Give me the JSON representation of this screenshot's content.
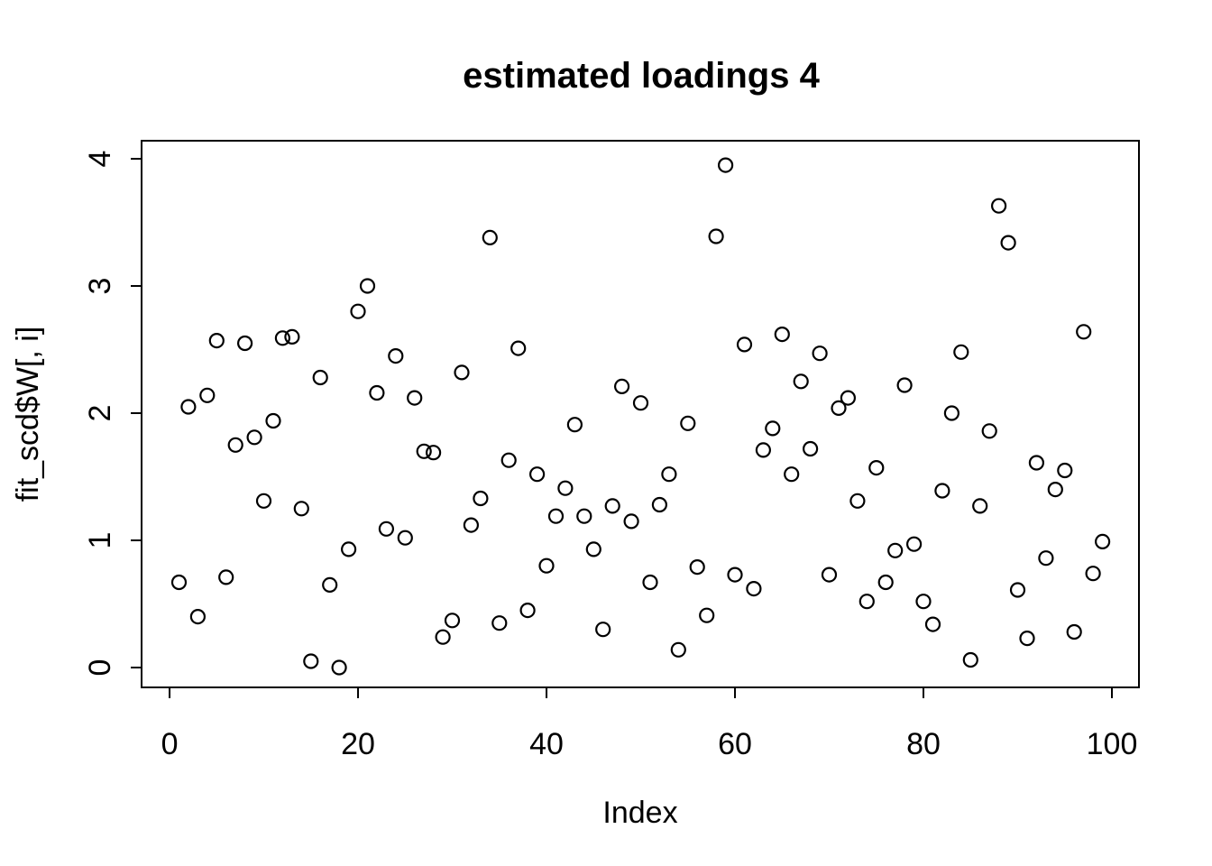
{
  "chart_data": {
    "type": "scatter",
    "title": "estimated loadings 4",
    "xlabel": "Index",
    "ylabel": "fit_scd$W[, i]",
    "x_ticks": [
      0,
      20,
      40,
      60,
      80,
      100
    ],
    "y_ticks": [
      0,
      1,
      2,
      3,
      4
    ],
    "xlim": [
      -2.97,
      102.87
    ],
    "ylim": [
      -0.156,
      4.142
    ],
    "grid": false,
    "legend": "none",
    "marker": "open-circle",
    "marker_color": "#000000",
    "background_color": "#ffffff",
    "x": [
      1,
      2,
      3,
      4,
      5,
      6,
      7,
      8,
      9,
      10,
      11,
      12,
      13,
      14,
      15,
      16,
      17,
      18,
      19,
      20,
      21,
      22,
      23,
      24,
      25,
      26,
      27,
      28,
      29,
      30,
      31,
      32,
      33,
      34,
      35,
      36,
      37,
      38,
      39,
      40,
      41,
      42,
      43,
      44,
      45,
      46,
      47,
      48,
      49,
      50,
      51,
      52,
      53,
      54,
      55,
      56,
      57,
      58,
      59,
      60,
      61,
      62,
      63,
      64,
      65,
      66,
      67,
      68,
      69,
      70,
      71,
      72,
      73,
      74,
      75,
      76,
      77,
      78,
      79,
      80,
      81,
      82,
      83,
      84,
      85,
      86,
      87,
      88,
      89,
      90,
      91,
      92,
      93,
      94,
      95,
      96,
      97,
      98,
      99
    ],
    "y": [
      0.67,
      2.05,
      0.4,
      2.14,
      2.57,
      0.71,
      1.75,
      2.55,
      1.81,
      1.31,
      1.94,
      2.59,
      2.6,
      1.25,
      0.05,
      2.28,
      0.65,
      0.0,
      0.93,
      2.8,
      3.0,
      2.16,
      1.09,
      2.45,
      1.02,
      2.12,
      1.7,
      1.69,
      0.24,
      0.37,
      2.32,
      1.12,
      1.33,
      3.38,
      0.35,
      1.63,
      2.51,
      0.45,
      1.52,
      0.8,
      1.19,
      1.41,
      1.91,
      1.19,
      0.93,
      0.3,
      1.27,
      2.21,
      1.15,
      2.08,
      0.67,
      1.28,
      1.52,
      0.14,
      1.92,
      0.79,
      0.41,
      3.39,
      3.95,
      0.73,
      2.54,
      0.62,
      1.71,
      1.88,
      2.62,
      1.52,
      2.25,
      1.72,
      2.47,
      0.73,
      2.04,
      2.12,
      1.31,
      0.52,
      1.57,
      0.67,
      0.92,
      2.22,
      0.97,
      0.52,
      0.34,
      1.39,
      2.0,
      2.48,
      0.06,
      1.27,
      1.86,
      3.63,
      3.34,
      0.61,
      0.23,
      1.61,
      0.86,
      1.4,
      1.55,
      0.28,
      2.64,
      0.74,
      0.99
    ]
  }
}
